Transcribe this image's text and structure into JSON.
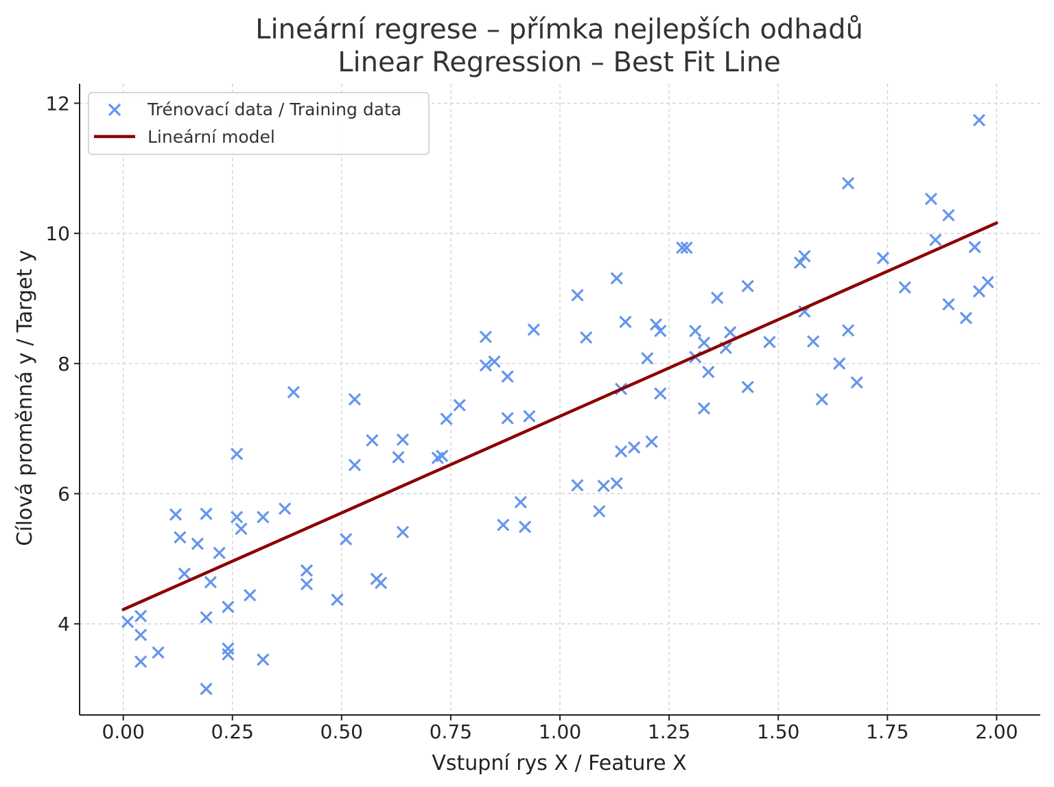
{
  "chart_data": {
    "type": "scatter",
    "title": [
      "Lineární regrese – přímka nejlepších odhadů",
      "Linear Regression – Best Fit Line"
    ],
    "xlabel": "Vstupní rys X / Feature X",
    "ylabel": "Cílová proměnná y / Target y",
    "xlim": [
      -0.1,
      2.1
    ],
    "ylim": [
      2.6,
      12.3
    ],
    "xticks": [
      0.0,
      0.25,
      0.5,
      0.75,
      1.0,
      1.25,
      1.5,
      1.75,
      2.0
    ],
    "xtick_labels": [
      "0.00",
      "0.25",
      "0.50",
      "0.75",
      "1.00",
      "1.25",
      "1.50",
      "1.75",
      "2.00"
    ],
    "yticks": [
      4,
      6,
      8,
      10,
      12
    ],
    "ytick_labels": [
      "4",
      "6",
      "8",
      "10",
      "12"
    ],
    "grid": true,
    "legend_position": "top-left",
    "series": [
      {
        "name": "Trénovací data / Training data",
        "kind": "scatter",
        "marker": "x",
        "color": "#6495ed",
        "points": [
          [
            0.01,
            4.03
          ],
          [
            0.04,
            4.12
          ],
          [
            0.04,
            3.83
          ],
          [
            0.04,
            3.42
          ],
          [
            0.08,
            3.56
          ],
          [
            0.12,
            5.68
          ],
          [
            0.13,
            5.33
          ],
          [
            0.14,
            4.77
          ],
          [
            0.17,
            5.23
          ],
          [
            0.19,
            3.0
          ],
          [
            0.19,
            4.1
          ],
          [
            0.19,
            5.69
          ],
          [
            0.2,
            4.64
          ],
          [
            0.22,
            5.09
          ],
          [
            0.24,
            4.26
          ],
          [
            0.24,
            3.62
          ],
          [
            0.24,
            3.53
          ],
          [
            0.26,
            6.61
          ],
          [
            0.26,
            5.64
          ],
          [
            0.27,
            5.46
          ],
          [
            0.29,
            4.44
          ],
          [
            0.32,
            3.45
          ],
          [
            0.32,
            5.64
          ],
          [
            0.37,
            5.77
          ],
          [
            0.39,
            7.56
          ],
          [
            0.42,
            4.82
          ],
          [
            0.42,
            4.61
          ],
          [
            0.49,
            4.37
          ],
          [
            0.51,
            5.3
          ],
          [
            0.53,
            7.45
          ],
          [
            0.53,
            6.44
          ],
          [
            0.57,
            6.82
          ],
          [
            0.58,
            4.69
          ],
          [
            0.59,
            4.63
          ],
          [
            0.63,
            6.56
          ],
          [
            0.64,
            6.83
          ],
          [
            0.64,
            5.41
          ],
          [
            0.72,
            6.55
          ],
          [
            0.73,
            6.58
          ],
          [
            0.74,
            7.15
          ],
          [
            0.77,
            7.36
          ],
          [
            0.83,
            8.41
          ],
          [
            0.83,
            7.97
          ],
          [
            0.85,
            8.03
          ],
          [
            0.87,
            5.52
          ],
          [
            0.88,
            7.8
          ],
          [
            0.88,
            7.16
          ],
          [
            0.91,
            5.87
          ],
          [
            0.92,
            5.49
          ],
          [
            0.93,
            7.19
          ],
          [
            0.94,
            8.52
          ],
          [
            1.04,
            9.05
          ],
          [
            1.04,
            6.13
          ],
          [
            1.06,
            8.4
          ],
          [
            1.09,
            5.73
          ],
          [
            1.1,
            6.12
          ],
          [
            1.13,
            9.31
          ],
          [
            1.13,
            6.16
          ],
          [
            1.14,
            7.61
          ],
          [
            1.14,
            6.65
          ],
          [
            1.15,
            8.64
          ],
          [
            1.17,
            6.71
          ],
          [
            1.2,
            8.08
          ],
          [
            1.21,
            6.8
          ],
          [
            1.22,
            8.6
          ],
          [
            1.23,
            8.5
          ],
          [
            1.23,
            7.54
          ],
          [
            1.28,
            9.78
          ],
          [
            1.29,
            9.78
          ],
          [
            1.31,
            8.5
          ],
          [
            1.31,
            8.1
          ],
          [
            1.33,
            8.32
          ],
          [
            1.33,
            7.31
          ],
          [
            1.34,
            7.87
          ],
          [
            1.36,
            9.01
          ],
          [
            1.38,
            8.24
          ],
          [
            1.39,
            8.48
          ],
          [
            1.43,
            9.19
          ],
          [
            1.43,
            7.64
          ],
          [
            1.48,
            8.33
          ],
          [
            1.55,
            9.55
          ],
          [
            1.56,
            9.65
          ],
          [
            1.56,
            8.8
          ],
          [
            1.58,
            8.34
          ],
          [
            1.6,
            7.45
          ],
          [
            1.64,
            8.0
          ],
          [
            1.66,
            8.51
          ],
          [
            1.66,
            10.77
          ],
          [
            1.68,
            7.71
          ],
          [
            1.74,
            9.62
          ],
          [
            1.79,
            9.17
          ],
          [
            1.85,
            10.53
          ],
          [
            1.86,
            9.9
          ],
          [
            1.89,
            10.28
          ],
          [
            1.89,
            8.91
          ],
          [
            1.93,
            8.7
          ],
          [
            1.95,
            9.79
          ],
          [
            1.96,
            9.11
          ],
          [
            1.96,
            11.74
          ],
          [
            1.98,
            9.25
          ]
        ]
      },
      {
        "name": "Lineární model",
        "kind": "line",
        "color": "#8b0000",
        "points": [
          [
            0.0,
            4.22
          ],
          [
            2.0,
            10.16
          ]
        ]
      }
    ]
  }
}
